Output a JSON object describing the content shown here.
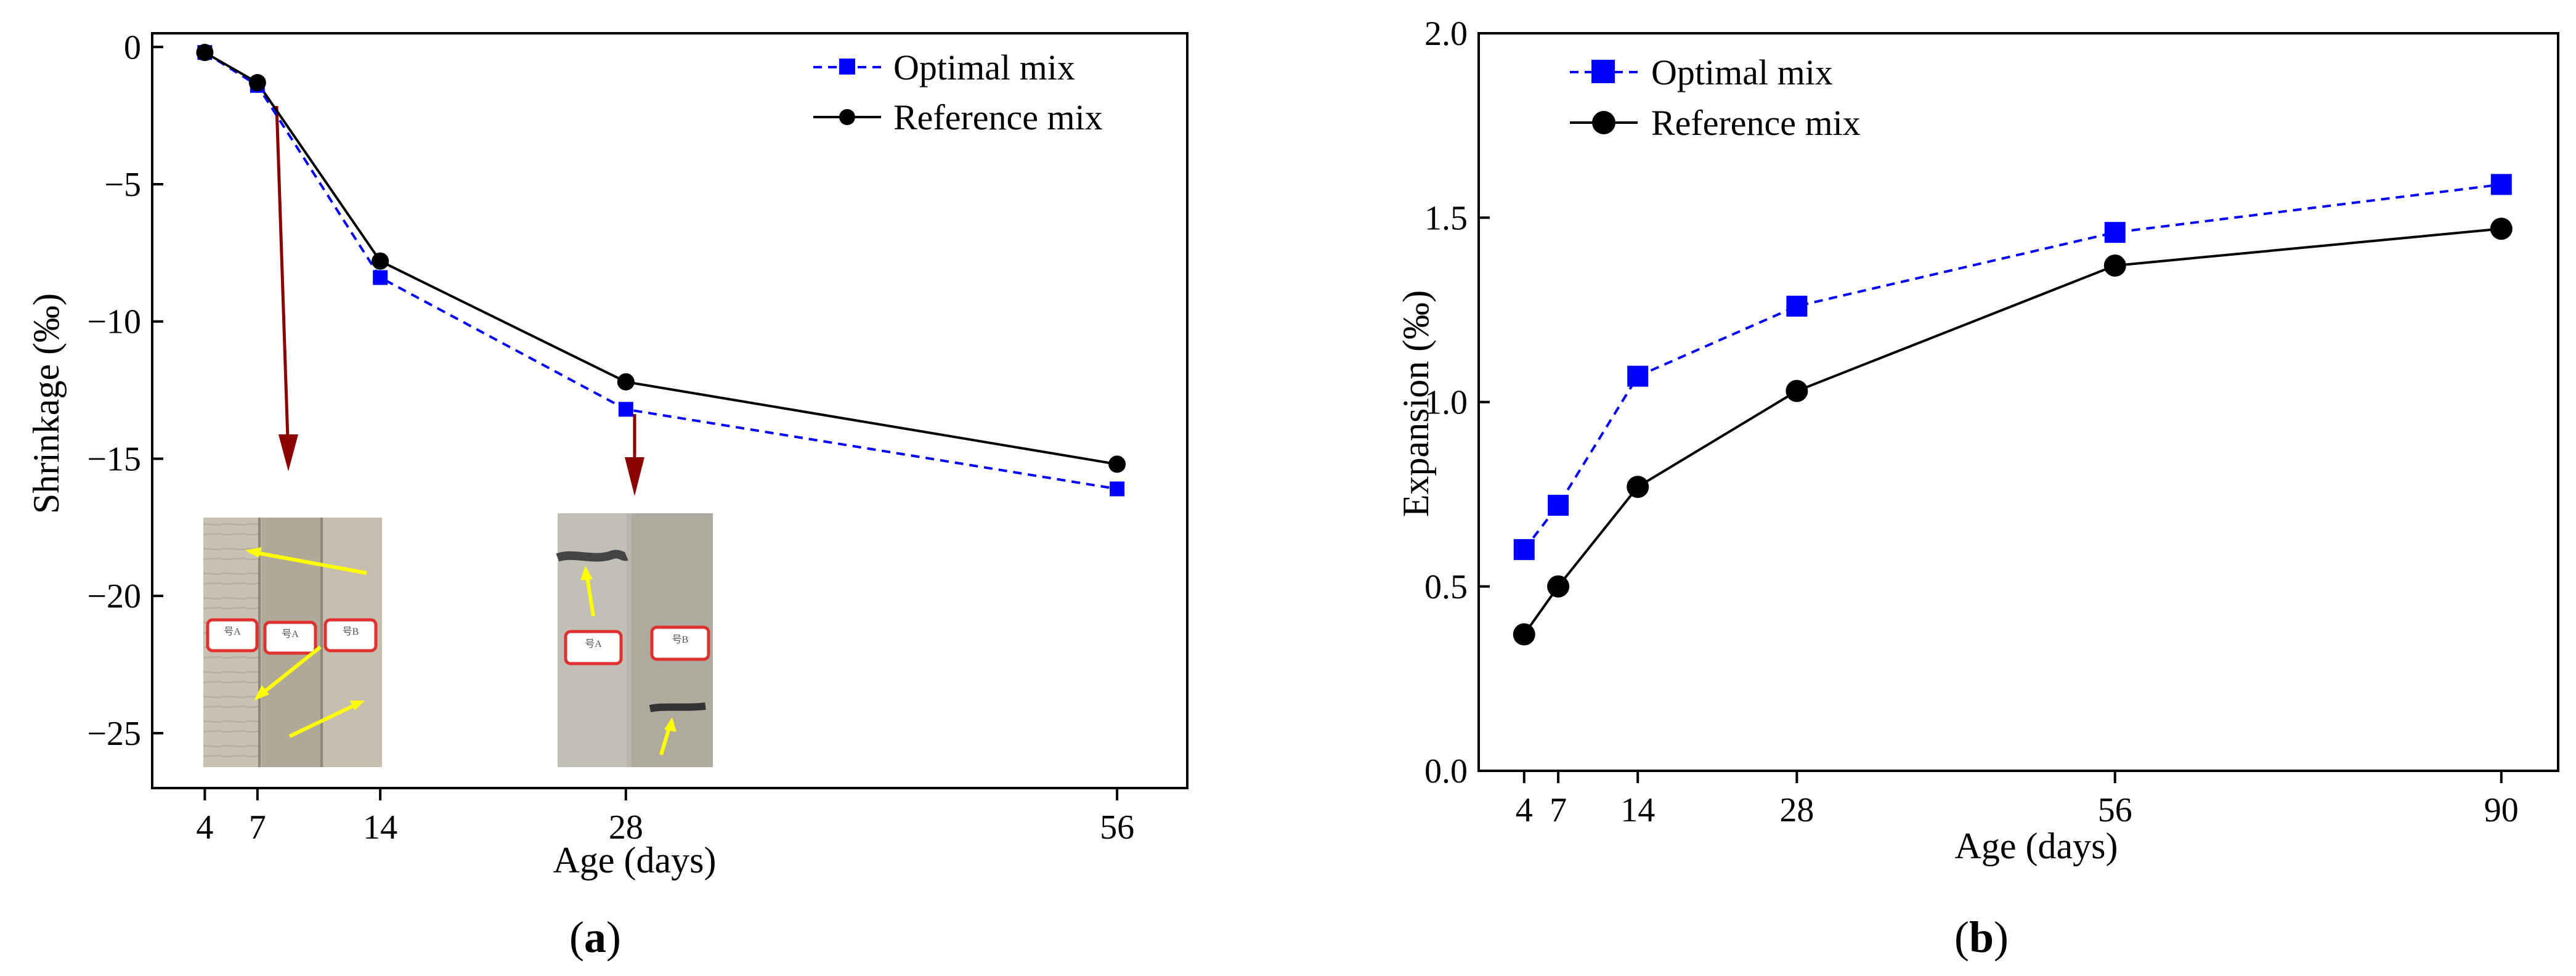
{
  "figure": {
    "colors": {
      "optimal": "#0000ff",
      "reference": "#000000",
      "arrow": "#8b0000",
      "photo_arrow": "#ffff00"
    }
  },
  "chart_data": [
    {
      "type": "line",
      "panel_label": "a",
      "xlabel": "Age (days)",
      "ylabel": "Shrinkage (‰)",
      "xlim": [
        1,
        60
      ],
      "ylim": [
        -27,
        0.5
      ],
      "x_ticks": [
        4,
        7,
        14,
        28,
        56
      ],
      "y_ticks": [
        0,
        -5,
        -10,
        -15,
        -20,
        -25
      ],
      "series": [
        {
          "name": "Optimal mix",
          "marker": "square",
          "line": "dashed",
          "color": "#0000ff",
          "x": [
            4,
            7,
            14,
            28,
            56
          ],
          "y": [
            -0.2,
            -1.4,
            -8.4,
            -13.2,
            -16.1
          ]
        },
        {
          "name": "Reference mix",
          "marker": "circle",
          "line": "solid",
          "color": "#000000",
          "x": [
            4,
            7,
            14,
            28,
            56
          ],
          "y": [
            -0.2,
            -1.3,
            -7.8,
            -12.2,
            -15.2
          ]
        }
      ],
      "legend_position": "top-right",
      "annotations": [
        {
          "type": "arrow",
          "from_x": 7,
          "note": "specimen photo at 7 days"
        },
        {
          "type": "arrow",
          "from_x": 28,
          "note": "specimen photo at 28 days"
        }
      ],
      "photo_labels": [
        "号A",
        "号A",
        "号B",
        "号A",
        "号B"
      ]
    },
    {
      "type": "line",
      "panel_label": "b",
      "xlabel": "Age (days)",
      "ylabel": "Expansion (‰)",
      "xlim": [
        0,
        95
      ],
      "ylim": [
        0,
        2.0
      ],
      "x_ticks": [
        4,
        7,
        14,
        28,
        56,
        90
      ],
      "y_ticks": [
        0.0,
        0.5,
        1.0,
        1.5,
        2.0
      ],
      "series": [
        {
          "name": "Optimal mix",
          "marker": "square",
          "line": "dashed",
          "color": "#0000ff",
          "x": [
            4,
            7,
            14,
            28,
            56,
            90
          ],
          "y": [
            0.6,
            0.72,
            1.07,
            1.26,
            1.46,
            1.59
          ]
        },
        {
          "name": "Reference mix",
          "marker": "circle",
          "line": "solid",
          "color": "#000000",
          "x": [
            4,
            7,
            14,
            28,
            56,
            90
          ],
          "y": [
            0.37,
            0.5,
            0.77,
            1.03,
            1.37,
            1.47
          ]
        }
      ],
      "legend_position": "top-left"
    }
  ]
}
